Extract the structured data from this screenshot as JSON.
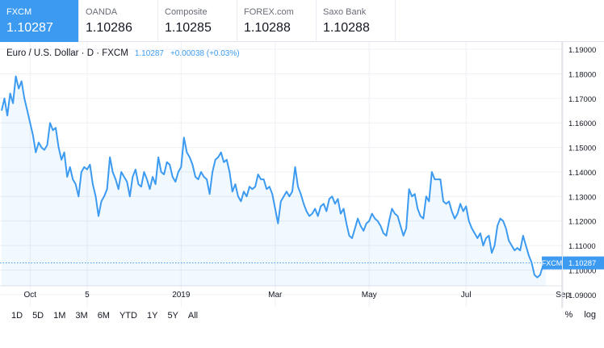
{
  "tabs": [
    {
      "name": "FXCM",
      "price": "1.10287"
    },
    {
      "name": "OANDA",
      "price": "1.10286"
    },
    {
      "name": "Composite",
      "price": "1.10285"
    },
    {
      "name": "FOREX.com",
      "price": "1.10288"
    },
    {
      "name": "Saxo Bank",
      "price": "1.10288"
    }
  ],
  "legend": {
    "symbol": "Euro / U.S. Dollar · D · FXCM",
    "last": "1.10287",
    "change": "+0.00038 (+0.03%)"
  },
  "last_label": {
    "name": "FXCM",
    "value": "1.10287"
  },
  "ranges": [
    "1D",
    "5D",
    "1M",
    "3M",
    "6M",
    "YTD",
    "1Y",
    "5Y",
    "All"
  ],
  "options": {
    "percent": "%",
    "log": "log"
  },
  "colors": {
    "line": "#3c9bf0",
    "active_tab": "#3c9bf0",
    "grid": "#eef0f4"
  },
  "chart_data": {
    "type": "area",
    "ylim": [
      1.085,
      1.193
    ],
    "y_ticks": [
      "1.19000",
      "1.18000",
      "1.17000",
      "1.16000",
      "1.15000",
      "1.14000",
      "1.13000",
      "1.12000",
      "1.11000",
      "1.10000",
      "1.09000"
    ],
    "x_ticks": [
      "Oct",
      "5",
      "2019",
      "Mar",
      "May",
      "Jul",
      "Sep"
    ],
    "x_tick_index": [
      10,
      30,
      63,
      96,
      129,
      163,
      197
    ],
    "values": [
      1.165,
      1.17,
      1.163,
      1.172,
      1.168,
      1.179,
      1.174,
      1.177,
      1.17,
      1.165,
      1.16,
      1.155,
      1.148,
      1.152,
      1.15,
      1.149,
      1.151,
      1.16,
      1.157,
      1.158,
      1.15,
      1.145,
      1.148,
      1.138,
      1.142,
      1.137,
      1.135,
      1.13,
      1.14,
      1.142,
      1.141,
      1.143,
      1.135,
      1.13,
      1.122,
      1.128,
      1.13,
      1.133,
      1.146,
      1.14,
      1.137,
      1.133,
      1.14,
      1.138,
      1.136,
      1.13,
      1.138,
      1.141,
      1.135,
      1.134,
      1.14,
      1.137,
      1.133,
      1.138,
      1.135,
      1.146,
      1.14,
      1.139,
      1.144,
      1.143,
      1.138,
      1.136,
      1.14,
      1.142,
      1.154,
      1.148,
      1.146,
      1.143,
      1.138,
      1.137,
      1.14,
      1.138,
      1.137,
      1.131,
      1.14,
      1.145,
      1.146,
      1.148,
      1.144,
      1.145,
      1.14,
      1.132,
      1.135,
      1.13,
      1.128,
      1.132,
      1.13,
      1.134,
      1.133,
      1.134,
      1.139,
      1.137,
      1.137,
      1.133,
      1.134,
      1.131,
      1.125,
      1.119,
      1.128,
      1.13,
      1.132,
      1.13,
      1.132,
      1.142,
      1.134,
      1.131,
      1.127,
      1.124,
      1.122,
      1.123,
      1.125,
      1.122,
      1.126,
      1.127,
      1.124,
      1.129,
      1.13,
      1.127,
      1.129,
      1.123,
      1.125,
      1.119,
      1.114,
      1.113,
      1.117,
      1.121,
      1.118,
      1.116,
      1.119,
      1.12,
      1.123,
      1.121,
      1.12,
      1.118,
      1.115,
      1.114,
      1.12,
      1.125,
      1.123,
      1.122,
      1.118,
      1.114,
      1.117,
      1.133,
      1.13,
      1.131,
      1.125,
      1.122,
      1.121,
      1.13,
      1.128,
      1.14,
      1.137,
      1.137,
      1.137,
      1.128,
      1.127,
      1.128,
      1.124,
      1.121,
      1.123,
      1.127,
      1.124,
      1.126,
      1.12,
      1.117,
      1.115,
      1.113,
      1.115,
      1.11,
      1.113,
      1.114,
      1.107,
      1.11,
      1.118,
      1.121,
      1.12,
      1.117,
      1.112,
      1.11,
      1.108,
      1.109,
      1.108,
      1.114,
      1.11,
      1.106,
      1.103,
      1.098,
      1.097,
      1.098,
      1.102,
      1.1029
    ]
  }
}
